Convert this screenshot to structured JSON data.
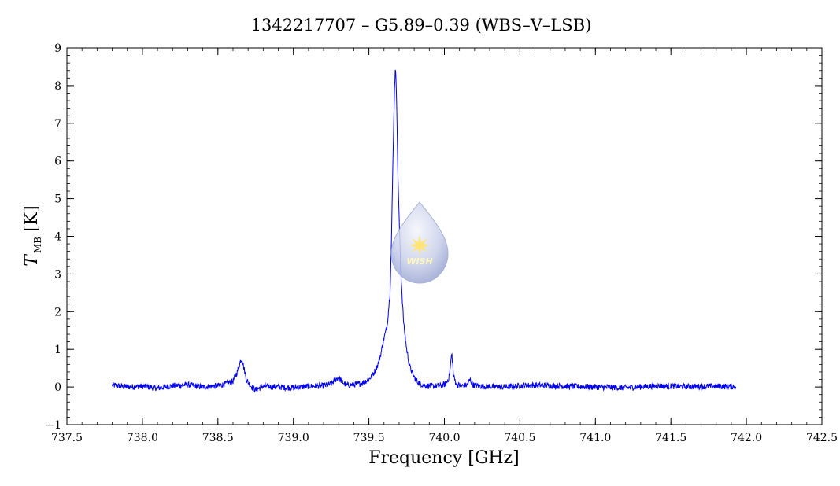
{
  "chart_data": {
    "type": "line",
    "title": "1342217707 – G5.89–0.39 (WBS–V–LSB)",
    "xlabel": "Frequency [GHz]",
    "ylabel_main": "T",
    "ylabel_sub": "MB",
    "ylabel_unit": "[K]",
    "xlim": [
      737.5,
      742.5
    ],
    "ylim": [
      -1,
      9
    ],
    "x_ticks": [
      737.5,
      738.0,
      738.5,
      739.0,
      739.5,
      740.0,
      740.5,
      741.0,
      741.5,
      742.0,
      742.5
    ],
    "x_tick_labels": [
      "737.5",
      "738.0",
      "738.5",
      "739.0",
      "739.5",
      "740.0",
      "740.5",
      "741.0",
      "741.5",
      "742.0",
      "742.5"
    ],
    "y_ticks": [
      -1,
      0,
      1,
      2,
      3,
      4,
      5,
      6,
      7,
      8,
      9
    ],
    "y_tick_labels": [
      "−1",
      "0",
      "1",
      "2",
      "3",
      "4",
      "5",
      "6",
      "7",
      "8",
      "9"
    ],
    "grid": false,
    "series": [
      {
        "color": "#0000ee",
        "x": [
          737.8,
          737.9,
          738.0,
          738.1,
          738.2,
          738.3,
          738.4,
          738.5,
          738.55,
          738.6,
          738.63,
          738.65,
          738.66,
          738.67,
          738.69,
          738.72,
          738.75,
          738.8,
          738.9,
          739.0,
          739.1,
          739.2,
          739.25,
          739.28,
          739.3,
          739.32,
          739.35,
          739.4,
          739.45,
          739.5,
          739.53,
          739.56,
          739.58,
          739.6,
          739.62,
          739.64,
          739.65,
          739.66,
          739.67,
          739.675,
          739.68,
          739.685,
          739.69,
          739.7,
          739.71,
          739.72,
          739.73,
          739.75,
          739.77,
          739.8,
          739.83,
          739.87,
          739.92,
          739.97,
          740.01,
          740.03,
          740.04,
          740.045,
          740.05,
          740.055,
          740.06,
          740.08,
          740.12,
          740.15,
          740.17,
          740.19,
          740.25,
          740.4,
          740.5,
          740.6,
          740.8,
          741.0,
          741.2,
          741.4,
          741.6,
          741.8,
          741.93
        ],
        "y": [
          0.05,
          0.0,
          0.02,
          -0.03,
          0.03,
          0.06,
          0.0,
          0.03,
          0.08,
          0.15,
          0.42,
          0.7,
          0.75,
          0.55,
          0.18,
          0.02,
          -0.08,
          0.02,
          0.0,
          -0.02,
          0.02,
          0.03,
          0.08,
          0.2,
          0.25,
          0.15,
          0.05,
          0.06,
          0.1,
          0.2,
          0.35,
          0.6,
          0.9,
          1.3,
          1.6,
          2.5,
          4.0,
          6.2,
          8.0,
          8.4,
          8.2,
          7.4,
          6.0,
          4.5,
          3.2,
          2.4,
          1.7,
          1.0,
          0.55,
          0.25,
          0.1,
          0.04,
          0.02,
          0.03,
          0.08,
          0.25,
          0.55,
          0.8,
          0.85,
          0.6,
          0.3,
          0.06,
          0.03,
          0.05,
          0.2,
          0.05,
          0.02,
          0.0,
          0.03,
          0.05,
          0.02,
          0.0,
          -0.02,
          0.03,
          0.01,
          0.02,
          0.01
        ]
      }
    ]
  },
  "logo": {
    "text": "WISH",
    "colors": {
      "drop_top": "#f2f4fa",
      "drop_bottom": "#aab4d8",
      "star": "#ffe060"
    }
  }
}
